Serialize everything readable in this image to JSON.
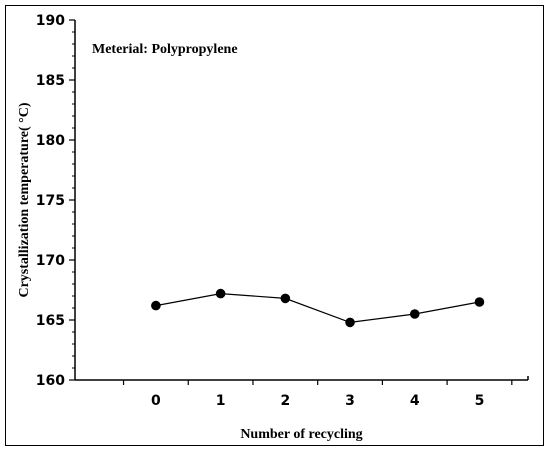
{
  "chart_data": {
    "type": "line",
    "annotation": "Meterial: Polypropylene",
    "xlabel": "Number of recycling",
    "ylabel": "Crystallization temperature( °C)",
    "x": [
      0,
      1,
      2,
      3,
      4,
      5
    ],
    "x_tick_labels": [
      "0",
      "1",
      "2",
      "3",
      "4",
      "5"
    ],
    "y": [
      166.2,
      167.2,
      166.8,
      164.8,
      165.5,
      166.5
    ],
    "ylim": [
      160,
      190
    ],
    "y_ticks": [
      160,
      165,
      170,
      175,
      180,
      185,
      190
    ],
    "y_tick_labels": [
      "160",
      "165",
      "170",
      "175",
      "180",
      "185",
      "190"
    ],
    "grid": false,
    "legend": "none",
    "line_color": "#000000",
    "marker_color": "#000000"
  }
}
